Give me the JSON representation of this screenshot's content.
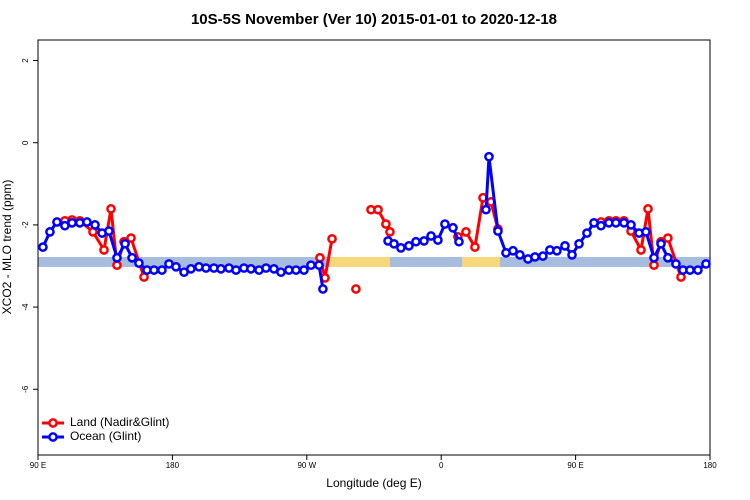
{
  "chart_data": {
    "type": "line",
    "title": "10S-5S November (Ver 10)   2015-01-01 to 2020-12-18",
    "x_label": "Longitude (deg E)",
    "y_label": "XCO2 - MLO trend (ppm)",
    "xlim": [
      90,
      540
    ],
    "ylim": [
      -7.6,
      2.5
    ],
    "xticks": [
      {
        "value": 90,
        "label": "90 E"
      },
      180,
      {
        "value": 270,
        "label": "90 W"
      },
      {
        "value": 360,
        "label": "0"
      },
      {
        "value": 450,
        "label": "90 E"
      },
      {
        "value": 540,
        "label": "180"
      }
    ],
    "yticks": [
      2,
      0,
      -2,
      -4,
      -6
    ],
    "legend_position": "bottomleft",
    "series": [
      {
        "name": "Land (Nadir&Glint)",
        "color": "#ff0000",
        "x": [
          108,
          112.8,
          118,
          126.8,
          134.2,
          138.9,
          142.9,
          147.6,
          152.3,
          161,
          null,
          278.8,
          282.2,
          286.9,
          null,
          302.9,
          null,
          313,
          317.7,
          323,
          325.7,
          null,
          371.2,
          376.6,
          382.6,
          388,
          393.3,
          398,
          null,
          467,
          472.3,
          477,
          482.4,
          487.1,
          493.8,
          498.5,
          502.5,
          507.2,
          511.8,
          520.6
        ],
        "values": [
          -1.9,
          -1.88,
          -1.9,
          -2.17,
          -2.61,
          -1.61,
          -2.98,
          -2.41,
          -2.32,
          -3.27,
          null,
          -2.8,
          -3.29,
          -2.34,
          null,
          -3.56,
          null,
          -1.63,
          -1.63,
          -1.98,
          -2.17,
          null,
          -2.29,
          -2.17,
          -2.54,
          -1.34,
          -1.44,
          -2.1,
          null,
          -1.93,
          -1.9,
          -1.9,
          -1.9,
          -2.15,
          -2.61,
          -1.61,
          -2.98,
          -2.41,
          -2.32,
          -3.27
        ]
      },
      {
        "name": "Ocean (Glint)",
        "color": "#0000ff",
        "x": [
          93.3,
          98,
          102.7,
          108,
          112.8,
          118,
          122.8,
          128.2,
          132.9,
          137.5,
          142.9,
          148.3,
          153,
          157.6,
          163,
          167.7,
          173,
          177.7,
          182.4,
          187.8,
          192.4,
          197.8,
          202.5,
          207.8,
          212.5,
          217.9,
          222.6,
          227.9,
          232.6,
          238,
          242.7,
          248,
          252.7,
          258,
          262.8,
          268.1,
          272.8,
          278.2,
          280.8,
          null,
          324.4,
          328.4,
          333,
          338.4,
          343.1,
          348.5,
          353.2,
          357.8,
          362.5,
          367.9,
          371.9,
          null,
          390,
          392,
          398,
          403.4,
          408.1,
          412.7,
          418.1,
          422.8,
          428.1,
          432.8,
          437.5,
          442.9,
          447.6,
          452.3,
          457.6,
          462.3,
          467,
          472.3,
          477,
          482.4,
          487.1,
          492.5,
          497.1,
          502.5,
          507.2,
          511.8,
          517.2,
          521.9,
          526.6,
          531.9,
          537.3
        ],
        "values": [
          -2.54,
          -2.17,
          -1.93,
          -2.02,
          -1.95,
          -1.95,
          -1.93,
          -2.0,
          -2.2,
          -2.15,
          -2.8,
          -2.46,
          -2.8,
          -2.93,
          -3.1,
          -3.1,
          -3.1,
          -2.95,
          -3.02,
          -3.15,
          -3.07,
          -3.02,
          -3.05,
          -3.05,
          -3.07,
          -3.05,
          -3.1,
          -3.05,
          -3.07,
          -3.1,
          -3.05,
          -3.07,
          -3.15,
          -3.1,
          -3.1,
          -3.1,
          -2.98,
          -2.98,
          -3.56,
          null,
          -2.39,
          -2.46,
          -2.56,
          -2.51,
          -2.41,
          -2.39,
          -2.27,
          -2.37,
          -1.98,
          -2.07,
          -2.41,
          null,
          -1.63,
          -0.34,
          -2.15,
          -2.68,
          -2.63,
          -2.73,
          -2.83,
          -2.78,
          -2.76,
          -2.61,
          -2.63,
          -2.51,
          -2.73,
          -2.46,
          -2.2,
          -1.95,
          -2.02,
          -1.95,
          -1.95,
          -1.95,
          -2.0,
          -2.2,
          -2.17,
          -2.8,
          -2.46,
          -2.8,
          -2.95,
          -3.1,
          -3.1,
          -3.1,
          -2.95
        ]
      }
    ]
  }
}
